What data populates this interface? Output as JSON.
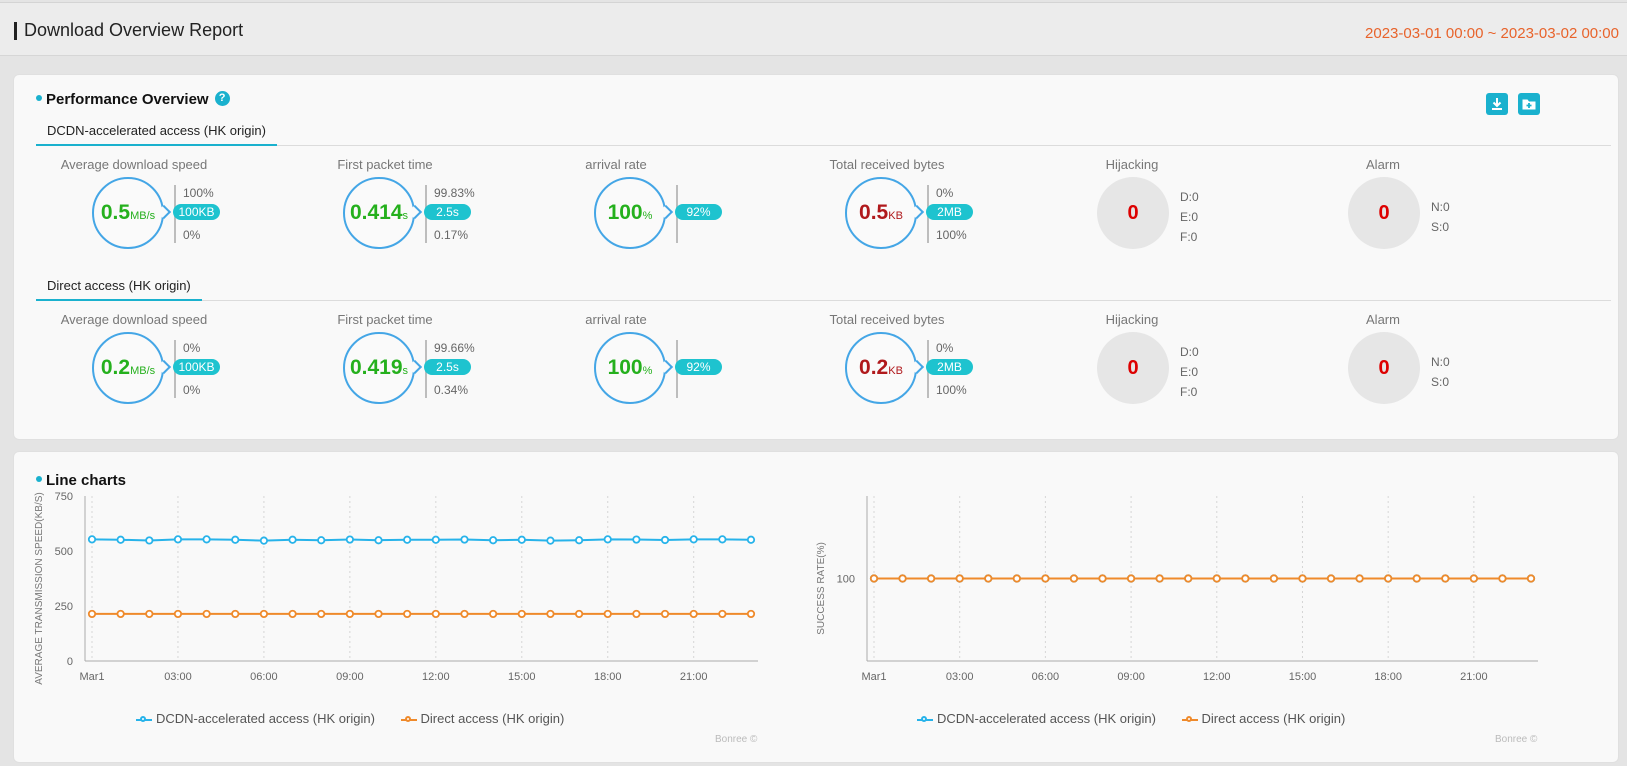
{
  "header": {
    "title": "Download Overview Report",
    "range": "2023-03-01 00:00 ~ 2023-03-02 00:00"
  },
  "performance": {
    "title": "Performance Overview",
    "help_icon": "question-icon",
    "groups": [
      {
        "tab": "DCDN-accelerated access (HK origin)",
        "speed": {
          "label": "Average download speed",
          "value": "0.5",
          "unit": "MB/s",
          "top": "100%",
          "pill": "100KB",
          "bottom": "0%"
        },
        "first_packet": {
          "label": "First packet time",
          "value": "0.414",
          "unit": "s",
          "top": "99.83%",
          "pill": "2.5s",
          "bottom": "0.17%"
        },
        "arrival": {
          "label": "arrival rate",
          "value": "100",
          "unit": "%",
          "pill": "92%"
        },
        "bytes": {
          "label": "Total received bytes",
          "value": "0.5",
          "unit": "KB",
          "top": "0%",
          "pill": "2MB",
          "bottom": "100%"
        },
        "hijacking": {
          "label": "Hijacking",
          "value": "0",
          "d": "D:0",
          "e": "E:0",
          "f": "F:0"
        },
        "alarm": {
          "label": "Alarm",
          "value": "0",
          "n": "N:0",
          "s": "S:0"
        }
      },
      {
        "tab": "Direct access (HK origin)",
        "speed": {
          "label": "Average download speed",
          "value": "0.2",
          "unit": "MB/s",
          "top": "0%",
          "pill": "100KB",
          "bottom": "0%"
        },
        "first_packet": {
          "label": "First packet time",
          "value": "0.419",
          "unit": "s",
          "top": "99.66%",
          "pill": "2.5s",
          "bottom": "0.34%"
        },
        "arrival": {
          "label": "arrival rate",
          "value": "100",
          "unit": "%",
          "pill": "92%"
        },
        "bytes": {
          "label": "Total received bytes",
          "value": "0.2",
          "unit": "KB",
          "top": "0%",
          "pill": "2MB",
          "bottom": "100%"
        },
        "hijacking": {
          "label": "Hijacking",
          "value": "0",
          "d": "D:0",
          "e": "E:0",
          "f": "F:0"
        },
        "alarm": {
          "label": "Alarm",
          "value": "0",
          "n": "N:0",
          "s": "S:0"
        }
      }
    ]
  },
  "charts_section": {
    "title": "Line charts",
    "watermark": "Bonree ©"
  },
  "colors": {
    "accent": "#1ab1ce",
    "series_dcdn": "#27b3ea",
    "series_direct": "#ef8a2b",
    "green": "#25b01d",
    "red": "#b0191c"
  },
  "chart_data": [
    {
      "type": "line",
      "title": "",
      "xlabel": "",
      "ylabel": "AVERAGE TRANSMISSION SPEED(KB/S)",
      "ylim": [
        0,
        750
      ],
      "yticks": [
        "0",
        "250",
        "500",
        "750"
      ],
      "xtick_labels": [
        "Mar1",
        "03:00",
        "06:00",
        "09:00",
        "12:00",
        "15:00",
        "18:00",
        "21:00"
      ],
      "x": [
        0,
        1,
        2,
        3,
        4,
        5,
        6,
        7,
        8,
        9,
        10,
        11,
        12,
        13,
        14,
        15,
        16,
        17,
        18,
        19,
        20,
        21,
        22,
        23
      ],
      "series": [
        {
          "name": "DCDN-accelerated access (HK origin)",
          "values": [
            553,
            551,
            548,
            553,
            553,
            551,
            547,
            551,
            549,
            552,
            549,
            551,
            551,
            552,
            549,
            551,
            547,
            549,
            553,
            552,
            550,
            553,
            553,
            551
          ]
        },
        {
          "name": "Direct access (HK origin)",
          "values": [
            214,
            214,
            214,
            214,
            214,
            214,
            214,
            214,
            214,
            214,
            214,
            214,
            214,
            214,
            214,
            214,
            214,
            214,
            214,
            214,
            214,
            214,
            214,
            214
          ]
        }
      ]
    },
    {
      "type": "line",
      "title": "",
      "xlabel": "",
      "ylabel": "SUCCESS RATE(%)",
      "ylim": [
        0,
        200
      ],
      "yticks": [
        "100"
      ],
      "xtick_labels": [
        "Mar1",
        "03:00",
        "06:00",
        "09:00",
        "12:00",
        "15:00",
        "18:00",
        "21:00"
      ],
      "x": [
        0,
        1,
        2,
        3,
        4,
        5,
        6,
        7,
        8,
        9,
        10,
        11,
        12,
        13,
        14,
        15,
        16,
        17,
        18,
        19,
        20,
        21,
        22,
        23
      ],
      "series": [
        {
          "name": "DCDN-accelerated access (HK origin)",
          "values": [
            100,
            100,
            100,
            100,
            100,
            100,
            100,
            100,
            100,
            100,
            100,
            100,
            100,
            100,
            100,
            100,
            100,
            100,
            100,
            100,
            100,
            100,
            100,
            100
          ]
        },
        {
          "name": "Direct access (HK origin)",
          "values": [
            100,
            100,
            100,
            100,
            100,
            100,
            100,
            100,
            100,
            100,
            100,
            100,
            100,
            100,
            100,
            100,
            100,
            100,
            100,
            100,
            100,
            100,
            100,
            100
          ]
        }
      ]
    }
  ]
}
